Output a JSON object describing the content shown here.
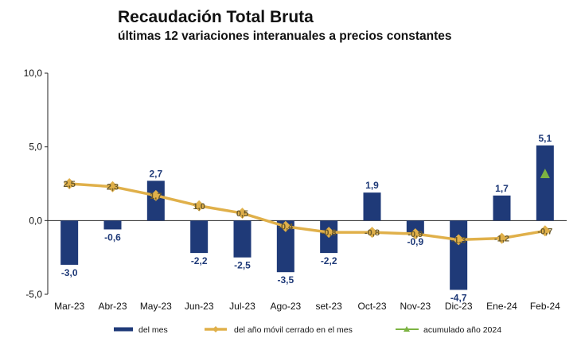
{
  "header": {
    "title": "Recaudación Total Bruta",
    "subtitle": "últimas 12 variaciones interanuales a precios constantes"
  },
  "chart_data": {
    "type": "bar",
    "categories": [
      "Mar-23",
      "Abr-23",
      "May-23",
      "Jun-23",
      "Jul-23",
      "Ago-23",
      "set-23",
      "Oct-23",
      "Nov-23",
      "Dic-23",
      "Ene-24",
      "Feb-24"
    ],
    "ylim": [
      -5,
      10
    ],
    "yticks": [
      "10,0",
      "5,0",
      "0,0",
      "-5,0"
    ],
    "grid": false,
    "legend_position": "bottom",
    "series": [
      {
        "name": "del mes",
        "type": "bar",
        "color": "#1f3a78",
        "values": [
          -3.0,
          -0.6,
          2.7,
          -2.2,
          -2.5,
          -3.5,
          -2.2,
          1.9,
          -0.9,
          -4.7,
          1.7,
          5.1
        ],
        "labels": [
          "-3,0",
          "-0,6",
          "2,7",
          "-2,2",
          "-2,5",
          "-3,5",
          "-2,2",
          "1,9",
          "-0,9",
          "-4,7",
          "1,7",
          "5,1"
        ]
      },
      {
        "name": "del año móvil cerrado en el mes",
        "type": "line",
        "color": "#e0b04a",
        "values": [
          2.5,
          2.3,
          1.7,
          1.0,
          0.5,
          -0.4,
          -0.8,
          -0.8,
          -0.9,
          -1.3,
          -1.2,
          -0.7
        ],
        "labels": [
          "2,5",
          "2,3",
          "1,7",
          "1,0",
          "0,5",
          "-0,4",
          "-0,8",
          "-0,8",
          "-0,9",
          "-1,3",
          "-1,2",
          "-0,7"
        ]
      },
      {
        "name": "acumulado año 2024",
        "type": "marker",
        "color": "#7cb342",
        "values": [
          null,
          null,
          null,
          null,
          null,
          null,
          null,
          null,
          null,
          null,
          null,
          3.2
        ]
      }
    ]
  }
}
